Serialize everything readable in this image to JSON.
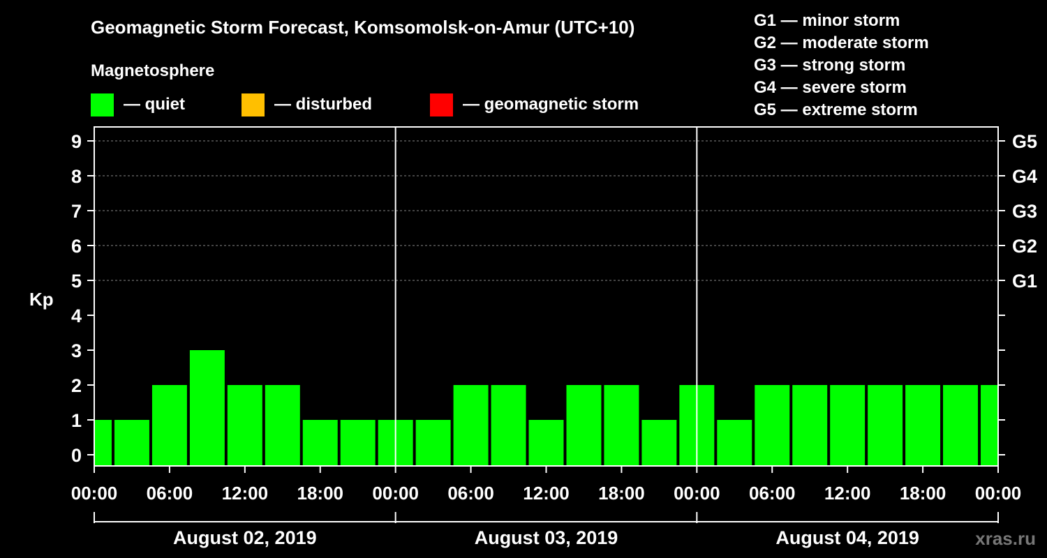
{
  "title": "Geomagnetic Storm Forecast, Komsomolsk-on-Amur (UTC+10)",
  "legend": {
    "heading": "Magnetosphere",
    "items": [
      {
        "label": "— quiet",
        "color": "#00ff00"
      },
      {
        "label": "— disturbed",
        "color": "#ffbf00"
      },
      {
        "label": "— geomagnetic storm",
        "color": "#ff0000"
      }
    ],
    "storm_levels": [
      "G1 — minor storm",
      "G2 — moderate storm",
      "G3 — strong storm",
      "G4 — severe storm",
      "G5 — extreme storm"
    ]
  },
  "watermark": "xras.ru",
  "chart_data": {
    "type": "bar",
    "ylabel": "Kp",
    "ylim": [
      0,
      9
    ],
    "yticks": [
      "0",
      "1",
      "2",
      "3",
      "4",
      "5",
      "6",
      "7",
      "8",
      "9"
    ],
    "g_ticks": [
      {
        "kp": 5,
        "label": "G1"
      },
      {
        "kp": 6,
        "label": "G2"
      },
      {
        "kp": 7,
        "label": "G3"
      },
      {
        "kp": 8,
        "label": "G4"
      },
      {
        "kp": 9,
        "label": "G5"
      }
    ],
    "grid": "dashed horizontal at Kp 5-9",
    "x_tick_labels": [
      "00:00",
      "06:00",
      "12:00",
      "18:00",
      "00:00",
      "06:00",
      "12:00",
      "18:00",
      "00:00",
      "06:00",
      "12:00",
      "18:00",
      "00:00"
    ],
    "days": [
      "August 02, 2019",
      "August 03, 2019",
      "August 04, 2019"
    ],
    "interval_hours": 3,
    "series": [
      {
        "values": [
          1,
          1,
          2,
          3,
          2,
          2,
          1,
          1,
          1,
          1,
          2,
          2,
          1,
          2,
          2,
          1,
          2,
          1,
          2,
          2,
          2,
          2,
          2,
          2,
          2
        ],
        "color": "#00ff00"
      }
    ]
  }
}
